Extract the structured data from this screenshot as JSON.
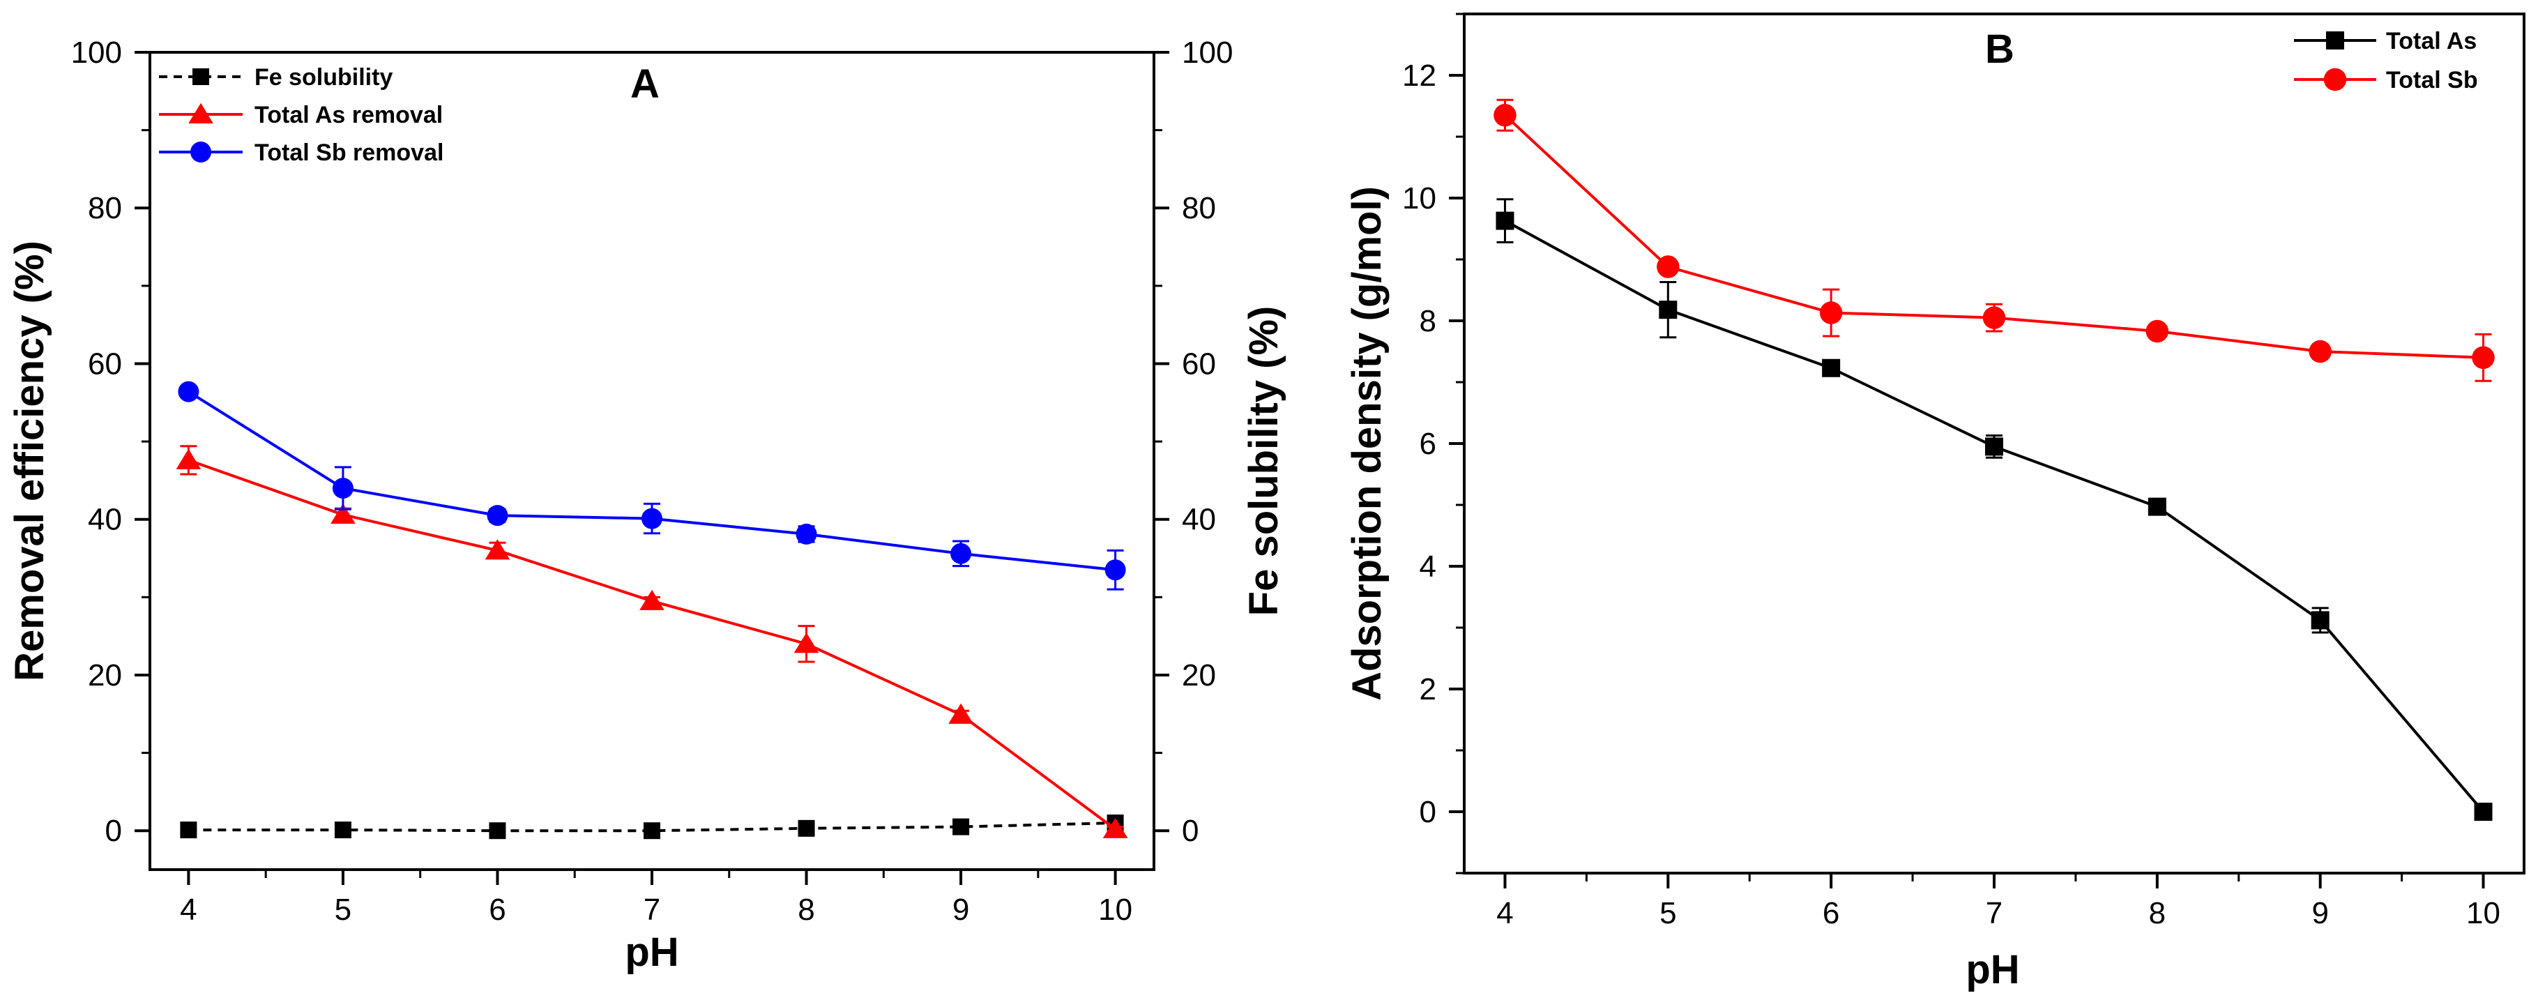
{
  "chart_data": [
    {
      "panel": "A",
      "type": "line",
      "xlabel": "pH",
      "ylabel_left": "Removal efficiency (%)",
      "ylabel_right": "Fe solubility (%)",
      "x": [
        4,
        5,
        6,
        7,
        8,
        9,
        10
      ],
      "xlim": [
        3.75,
        10.25
      ],
      "ylim_left": [
        -5,
        100
      ],
      "ylim_right": [
        -5,
        100
      ],
      "xticks": [
        4,
        5,
        6,
        7,
        8,
        9,
        10
      ],
      "yticks_left": [
        0,
        20,
        40,
        60,
        80,
        100
      ],
      "yticks_right": [
        0,
        20,
        40,
        60,
        80,
        100
      ],
      "legend_position": "top-left",
      "series": [
        {
          "name": "Fe solubility",
          "axis": "right",
          "color": "#000000",
          "marker": "square",
          "line_style": "dashed",
          "y": [
            0.1,
            0.1,
            0.0,
            0.0,
            0.3,
            0.5,
            1.0
          ],
          "err": [
            0,
            0,
            0,
            0,
            0,
            0,
            0
          ]
        },
        {
          "name": "Total As removal",
          "axis": "left",
          "color": "#ff0000",
          "marker": "triangle",
          "line_style": "solid",
          "y": [
            47.6,
            40.6,
            36.0,
            29.5,
            24.0,
            14.9,
            0.2
          ],
          "err": [
            1.8,
            0.8,
            1.0,
            0.5,
            2.3,
            0.5,
            0.3
          ]
        },
        {
          "name": "Total Sb removal",
          "axis": "left",
          "color": "#0000ff",
          "marker": "circle",
          "line_style": "solid",
          "y": [
            56.4,
            44.0,
            40.5,
            40.1,
            38.1,
            35.6,
            33.5
          ],
          "err": [
            0.5,
            2.7,
            0.8,
            1.9,
            1.0,
            1.6,
            2.5
          ]
        }
      ]
    },
    {
      "panel": "B",
      "type": "line",
      "xlabel": "pH",
      "ylabel": "Adsorption density (g/mol)",
      "x": [
        4,
        5,
        6,
        7,
        8,
        9,
        10
      ],
      "xlim": [
        3.75,
        10.25
      ],
      "ylim": [
        -1,
        13
      ],
      "xticks": [
        4,
        5,
        6,
        7,
        8,
        9,
        10
      ],
      "yticks": [
        0,
        2,
        4,
        6,
        8,
        10,
        12
      ],
      "legend_position": "top-right",
      "series": [
        {
          "name": "Total As",
          "color": "#000000",
          "marker": "square",
          "line_style": "solid",
          "y": [
            9.63,
            8.18,
            7.23,
            5.95,
            4.97,
            3.12,
            0.0
          ],
          "err": [
            0.35,
            0.45,
            0.08,
            0.18,
            0.08,
            0.2,
            0.05
          ]
        },
        {
          "name": "Total Sb",
          "color": "#ff0000",
          "marker": "circle",
          "line_style": "solid",
          "y": [
            11.35,
            8.88,
            8.13,
            8.05,
            7.83,
            7.5,
            7.4
          ],
          "err": [
            0.25,
            0.1,
            0.38,
            0.22,
            0.08,
            0.08,
            0.38
          ]
        }
      ]
    }
  ]
}
